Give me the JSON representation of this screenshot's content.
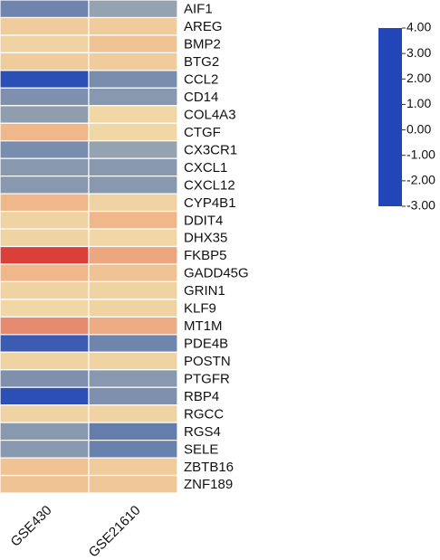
{
  "chart_data": {
    "type": "heatmap",
    "categories": [
      "AIF1",
      "AREG",
      "BMP2",
      "BTG2",
      "CCL2",
      "CD14",
      "COL4A3",
      "CTGF",
      "CX3CR1",
      "CXCL1",
      "CXCL12",
      "CYP4B1",
      "DDIT4",
      "DHX35",
      "FKBP5",
      "GADD45G",
      "GRIN1",
      "KLF9",
      "MT1M",
      "PDE4B",
      "POSTN",
      "PTGFR",
      "RBP4",
      "RGCC",
      "RGS4",
      "SELE",
      "ZBTB16",
      "ZNF189"
    ],
    "series": [
      {
        "name": "GSE430",
        "values": [
          -1.5,
          1.5,
          1.3,
          1.5,
          -2.8,
          -1.2,
          -0.9,
          2.0,
          -1.3,
          -1.0,
          -1.0,
          2.0,
          1.3,
          1.3,
          3.9,
          2.0,
          1.3,
          1.2,
          2.8,
          -2.5,
          1.3,
          -1.2,
          -2.8,
          1.3,
          -1.0,
          -1.0,
          1.7,
          1.7
        ]
      },
      {
        "name": "GSE21610",
        "values": [
          -0.8,
          1.5,
          1.7,
          1.5,
          -1.3,
          -1.0,
          1.2,
          1.2,
          -0.8,
          -1.0,
          -1.0,
          1.3,
          2.0,
          1.2,
          2.3,
          1.7,
          1.3,
          1.3,
          2.2,
          -1.5,
          1.3,
          -1.0,
          -1.2,
          1.3,
          -1.7,
          -1.6,
          1.5,
          1.6
        ]
      }
    ],
    "zlim": [
      -3,
      4
    ],
    "zticks": [
      {
        "value": 4,
        "label": "4.00"
      },
      {
        "value": 3,
        "label": "3.00"
      },
      {
        "value": 2,
        "label": "2.00"
      },
      {
        "value": 1,
        "label": "1.00"
      },
      {
        "value": 0,
        "label": "0.00"
      },
      {
        "value": -1,
        "label": "-1.00"
      },
      {
        "value": -2,
        "label": "-2.00"
      },
      {
        "value": -3,
        "label": "-3.00"
      }
    ],
    "colorscale": [
      [
        -3,
        "#2246b8"
      ],
      [
        -2,
        "#5572ad"
      ],
      [
        -1,
        "#8898ae"
      ],
      [
        0,
        "#c9c8b2"
      ],
      [
        1,
        "#f1dfad"
      ],
      [
        2,
        "#efb78a"
      ],
      [
        3,
        "#e4806a"
      ],
      [
        4,
        "#d93834"
      ]
    ]
  }
}
